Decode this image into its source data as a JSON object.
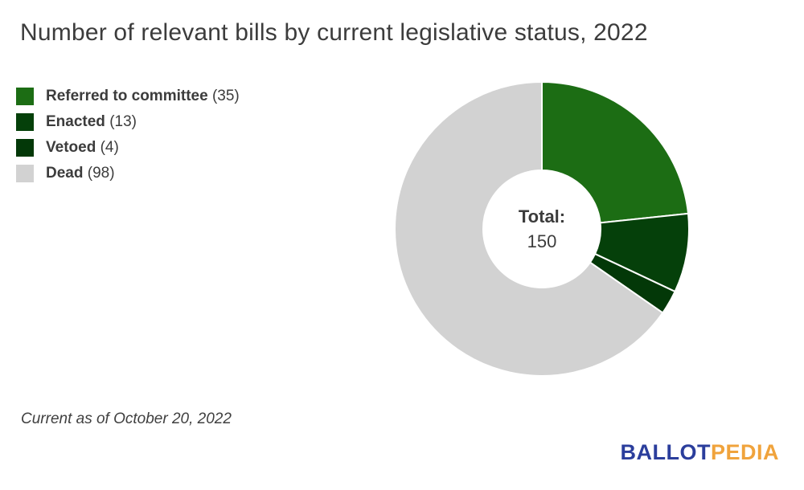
{
  "title": "Number of relevant bills by current legislative status, 2022",
  "footnote": "Current as of October 20, 2022",
  "logo": {
    "part1": "BALLOT",
    "part2": "PEDIA",
    "part1_color": "#2b3e9c",
    "part2_color": "#f0a33c"
  },
  "chart_data": {
    "type": "pie",
    "subtype": "donut",
    "title": "Number of relevant bills by current legislative status, 2022",
    "start_angle_deg": 0,
    "direction": "clockwise",
    "total": 150,
    "center_label": "Total:",
    "center_value": "150",
    "legend_position": "top-left",
    "slice_border_color": "#ffffff",
    "slices": [
      {
        "label": "Referred to committee",
        "value": 35,
        "color": "#1c6d14"
      },
      {
        "label": "Enacted",
        "value": 13,
        "color": "#05400a"
      },
      {
        "label": "Vetoed",
        "value": 4,
        "color": "#033808"
      },
      {
        "label": "Dead",
        "value": 98,
        "color": "#d2d2d2"
      }
    ]
  }
}
